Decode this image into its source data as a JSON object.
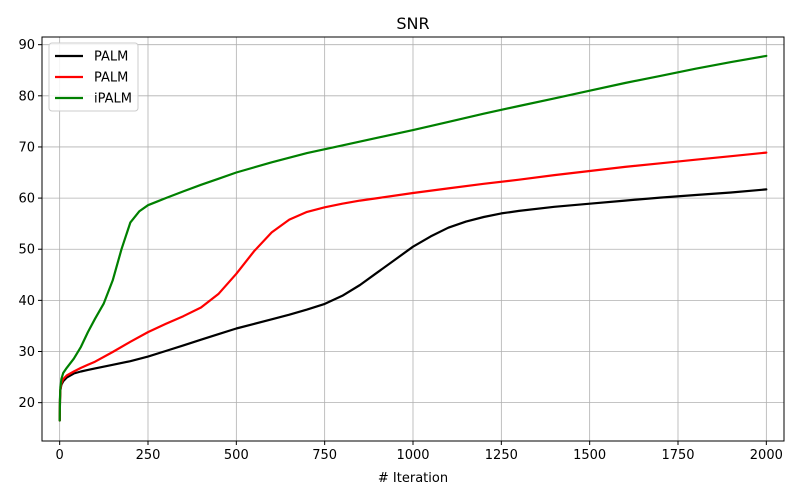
{
  "chart_data": {
    "type": "line",
    "title": "SNR",
    "xlabel": "# Iteration",
    "ylabel": "",
    "xlim": [
      -50,
      2050
    ],
    "ylim": [
      12.5,
      91.5
    ],
    "xticks": [
      0,
      250,
      500,
      750,
      1000,
      1250,
      1500,
      1750,
      2000
    ],
    "yticks": [
      20,
      30,
      40,
      50,
      60,
      70,
      80,
      90
    ],
    "grid": true,
    "legend_position": "top-left",
    "series": [
      {
        "name": "PALM",
        "color": "#000000",
        "x": [
          0,
          1,
          2,
          5,
          10,
          20,
          40,
          60,
          80,
          100,
          150,
          200,
          250,
          300,
          350,
          400,
          450,
          500,
          550,
          600,
          650,
          700,
          750,
          800,
          850,
          900,
          950,
          1000,
          1050,
          1100,
          1150,
          1200,
          1250,
          1300,
          1400,
          1500,
          1600,
          1700,
          1800,
          1900,
          2000
        ],
        "y": [
          16.5,
          20.5,
          22.5,
          23.5,
          24.2,
          24.9,
          25.7,
          26.1,
          26.4,
          26.7,
          27.4,
          28.1,
          29.0,
          30.1,
          31.2,
          32.3,
          33.4,
          34.5,
          35.4,
          36.3,
          37.2,
          38.2,
          39.3,
          40.9,
          43.0,
          45.5,
          48.0,
          50.5,
          52.5,
          54.2,
          55.4,
          56.3,
          57.0,
          57.5,
          58.3,
          58.9,
          59.5,
          60.1,
          60.6,
          61.1,
          61.7
        ]
      },
      {
        "name": "PALM",
        "color": "#ff0000",
        "x": [
          0,
          1,
          2,
          5,
          10,
          20,
          40,
          60,
          80,
          100,
          150,
          200,
          250,
          300,
          350,
          400,
          450,
          500,
          550,
          600,
          650,
          700,
          750,
          800,
          850,
          900,
          1000,
          1100,
          1200,
          1300,
          1400,
          1500,
          1600,
          1700,
          1800,
          1900,
          2000
        ],
        "y": [
          16.5,
          20.5,
          22.5,
          23.8,
          24.6,
          25.3,
          26.1,
          26.8,
          27.4,
          28.0,
          29.9,
          31.9,
          33.8,
          35.4,
          36.9,
          38.6,
          41.3,
          45.2,
          49.6,
          53.3,
          55.8,
          57.3,
          58.2,
          58.9,
          59.5,
          60.0,
          61.0,
          61.9,
          62.8,
          63.6,
          64.5,
          65.3,
          66.1,
          66.8,
          67.5,
          68.2,
          68.9
        ]
      },
      {
        "name": "iPALM",
        "color": "#008000",
        "x": [
          0,
          1,
          2,
          5,
          10,
          20,
          40,
          60,
          80,
          100,
          125,
          150,
          175,
          200,
          225,
          250,
          275,
          300,
          350,
          400,
          450,
          500,
          600,
          700,
          800,
          900,
          1000,
          1100,
          1200,
          1300,
          1400,
          1500,
          1600,
          1700,
          1800,
          1900,
          2000
        ],
        "y": [
          16.5,
          21.0,
          23.0,
          24.6,
          25.8,
          26.8,
          28.6,
          30.9,
          33.8,
          36.4,
          39.4,
          43.9,
          50.0,
          55.2,
          57.4,
          58.6,
          59.3,
          60.0,
          61.3,
          62.6,
          63.8,
          65.0,
          67.0,
          68.8,
          70.3,
          71.8,
          73.3,
          74.9,
          76.5,
          78.0,
          79.5,
          81.0,
          82.5,
          83.9,
          85.3,
          86.6,
          87.8
        ]
      }
    ]
  }
}
